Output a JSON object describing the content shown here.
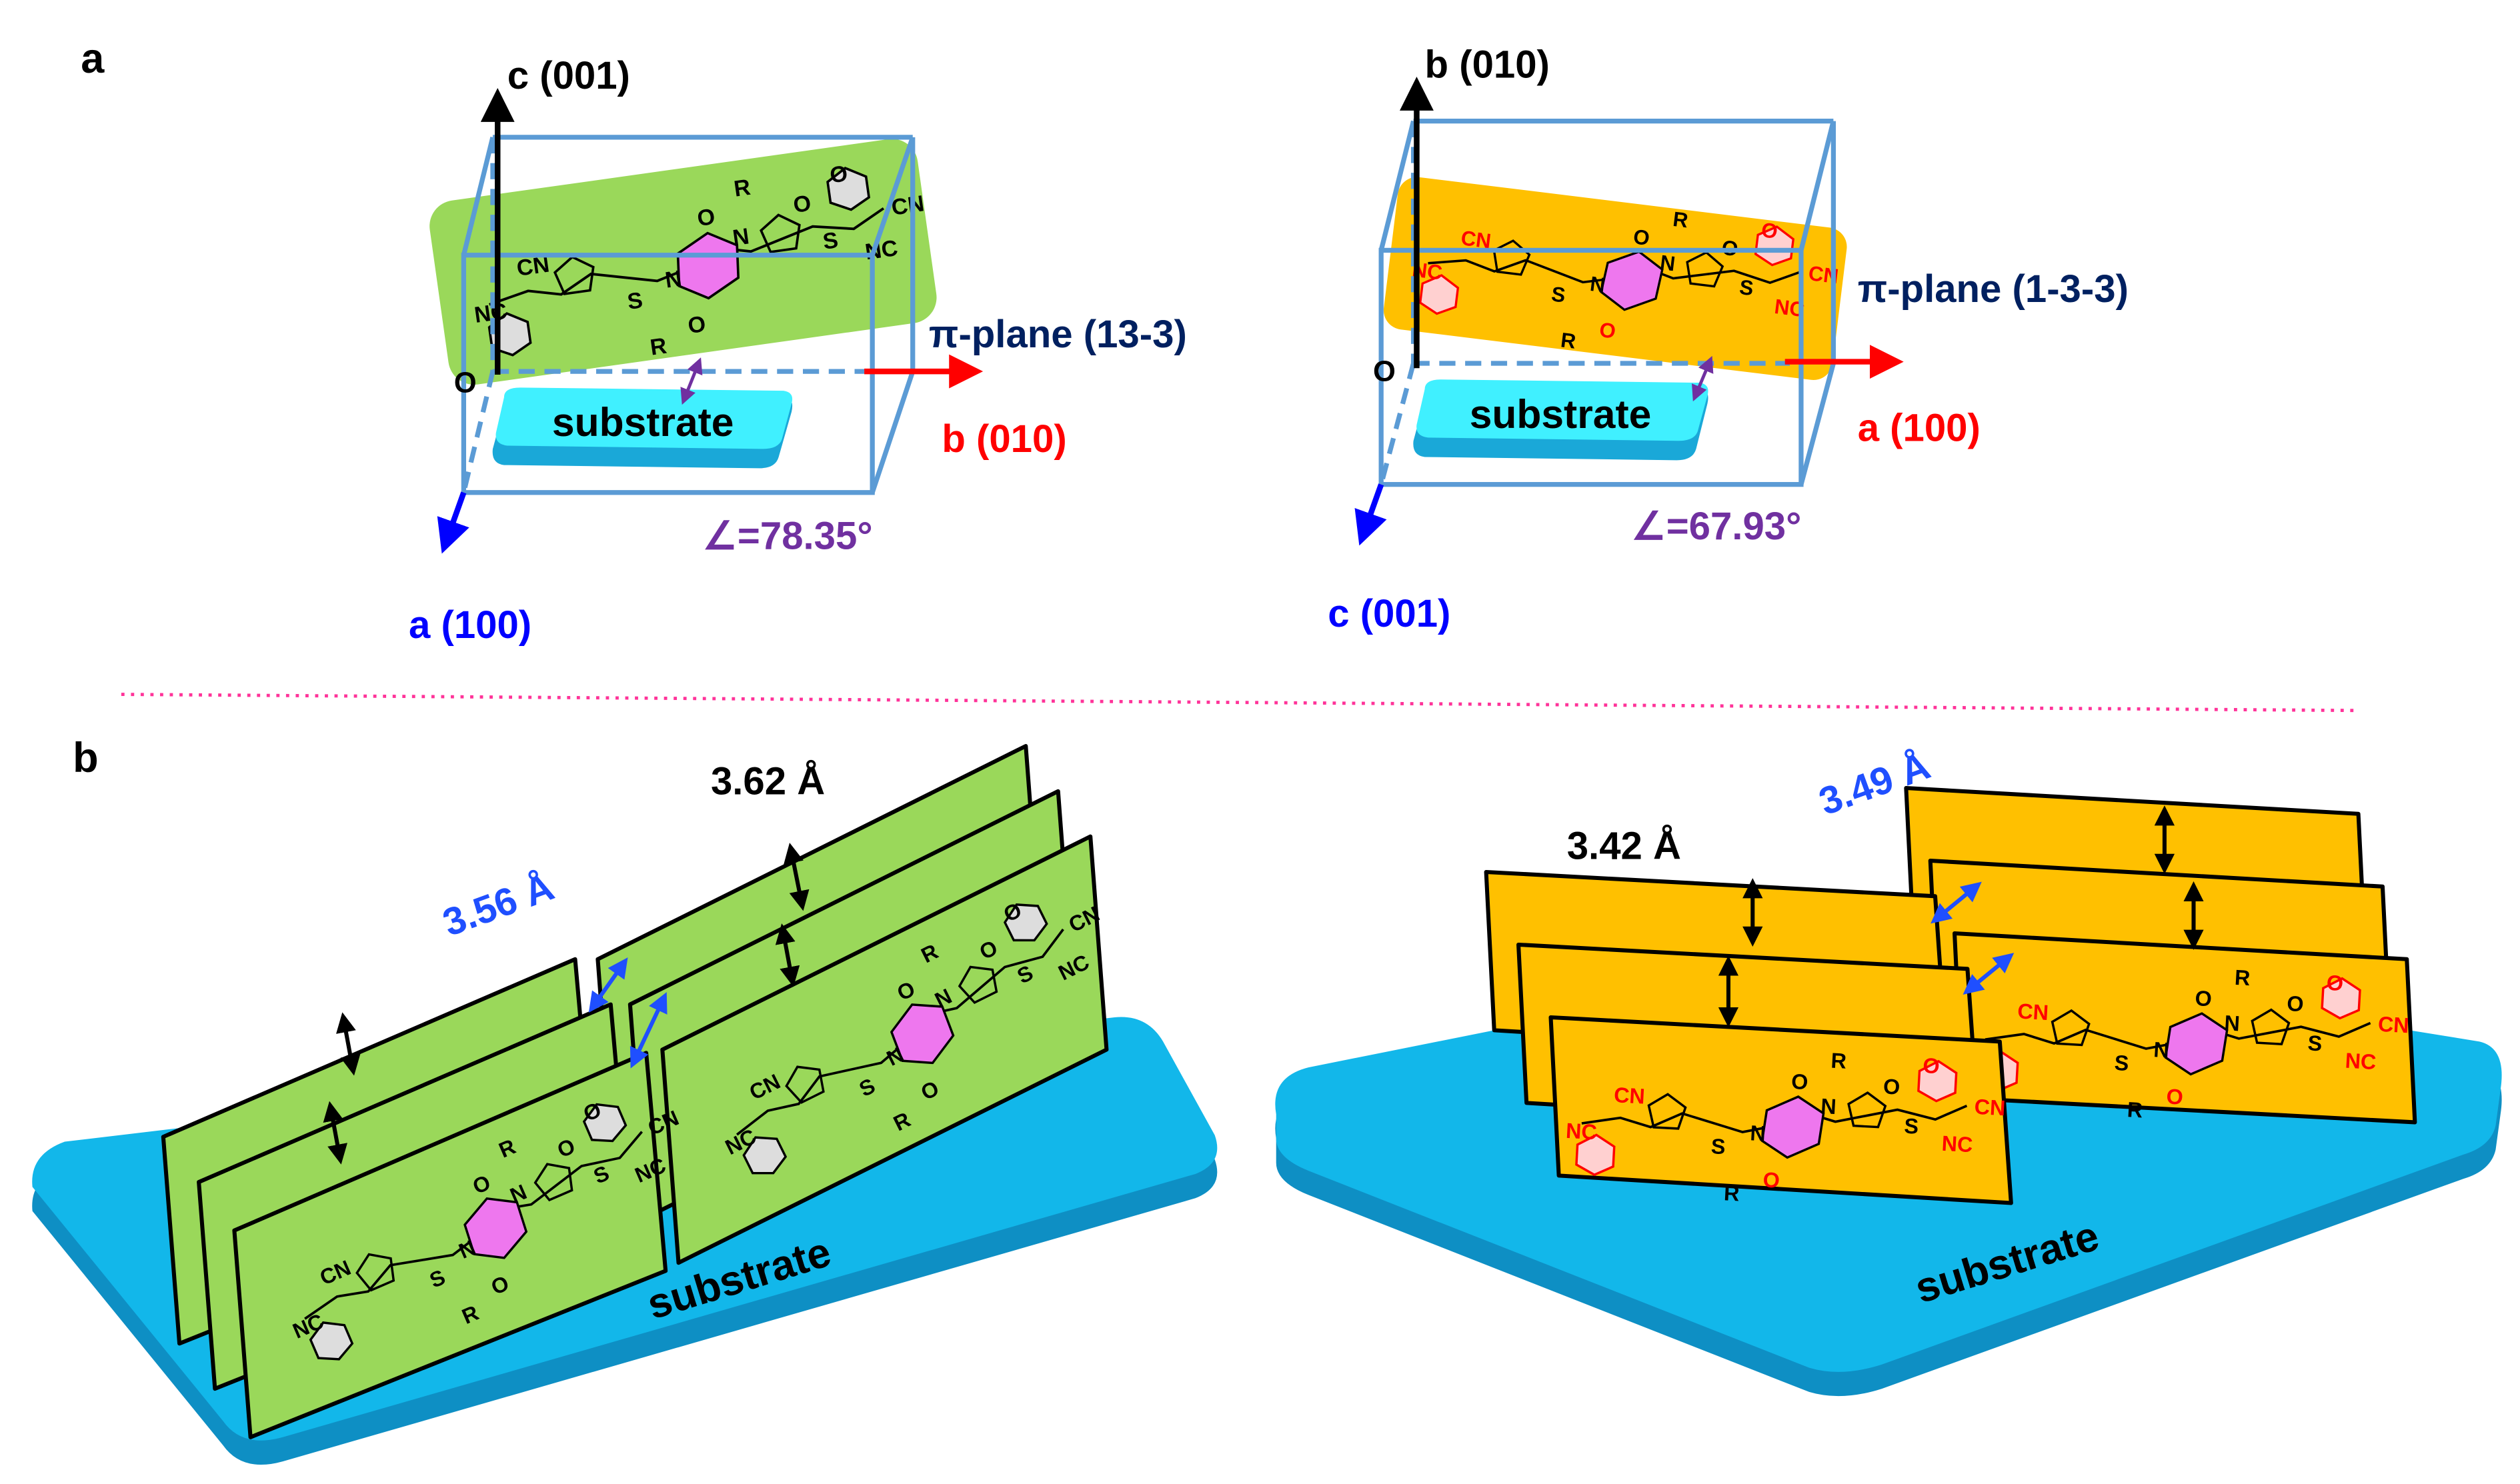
{
  "panel_a": {
    "label": "a",
    "left": {
      "vertical_axis": "c (001)",
      "horizontal_axis": "b (010)",
      "depth_axis": "a (100)",
      "plane": "π-plane (13-3)",
      "angle": "∠=78.35°",
      "origin": "O",
      "substrate": "substrate"
    },
    "right": {
      "vertical_axis": "b (010)",
      "horizontal_axis": "a (100)",
      "depth_axis": "c (001)",
      "plane": "π-plane (1-3-3)",
      "angle": "∠=67.93°",
      "origin": "O",
      "substrate": "substrate"
    }
  },
  "panel_b": {
    "label": "b",
    "left": {
      "distance_1": "3.56 Å",
      "distance_2": "3.62 Å",
      "substrate": "substrate"
    },
    "right": {
      "distance_1": "3.42 Å",
      "distance_2": "3.49 Å",
      "substrate": "substrate"
    }
  },
  "molecule_labels": {
    "green": [
      "NC",
      "CN",
      "S",
      "O",
      "N",
      "R",
      "O",
      "N",
      "R",
      "O",
      "S",
      "NC",
      "CN",
      "O"
    ],
    "orange": [
      "NC",
      "CN",
      "S",
      "O",
      "N",
      "R",
      "O",
      "N",
      "R",
      "O",
      "S",
      "NC",
      "CN",
      "O"
    ]
  },
  "colors": {
    "green_plane": "#9ad85a",
    "orange_plane": "#ffc000",
    "substrate": "#12b7ea",
    "substrate_small": "#40f0ff",
    "cell_box": "#5b9bd5",
    "plane_label": "#002060",
    "angle_label": "#7030a0",
    "red_axis": "#ff0000",
    "blue_axis": "#0000ff",
    "core": "#ee77ee",
    "divider": "#ff3399"
  }
}
